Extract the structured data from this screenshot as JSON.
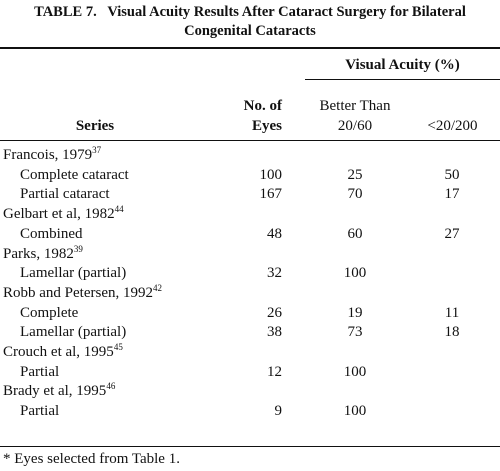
{
  "table": {
    "number": "TABLE 7.",
    "title": "Visual Acuity Results After Cataract Surgery for Bilateral Congenital Cataracts",
    "header": {
      "series": "Series",
      "eyes": "No. of Eyes",
      "group": "Visual Acuity (%)",
      "better": "Better Than 20/60",
      "poor": "<20/200"
    },
    "groups": [
      {
        "name": "Francois, 1979",
        "ref": "37",
        "rows": [
          {
            "label": "Complete cataract",
            "eyes": 100,
            "better": 25,
            "poor": 50
          },
          {
            "label": "Partial cataract",
            "eyes": 167,
            "better": 70,
            "poor": 17
          }
        ]
      },
      {
        "name": "Gelbart et al, 1982",
        "ref": "44",
        "rows": [
          {
            "label": "Combined",
            "eyes": 48,
            "better": 60,
            "poor": 27
          }
        ]
      },
      {
        "name": "Parks, 1982",
        "ref": "39",
        "rows": [
          {
            "label": "Lamellar (partial)",
            "eyes": 32,
            "better": 100,
            "poor": null
          }
        ]
      },
      {
        "name": "Robb and Petersen, 1992",
        "ref": "42",
        "rows": [
          {
            "label": "Complete",
            "eyes": 26,
            "better": 19,
            "poor": 11
          },
          {
            "label": "Lamellar (partial)",
            "eyes": 38,
            "better": 73,
            "poor": 18
          }
        ]
      },
      {
        "name": "Crouch et al, 1995",
        "ref": "45",
        "rows": [
          {
            "label": "Partial",
            "eyes": 12,
            "better": 100,
            "poor": null
          }
        ]
      },
      {
        "name": "Brady et al, 1995",
        "ref": "46",
        "rows": [
          {
            "label": "Partial",
            "eyes": 9,
            "better": 100,
            "poor": null
          }
        ]
      }
    ],
    "footnote": "* Eyes selected from Table 1."
  }
}
